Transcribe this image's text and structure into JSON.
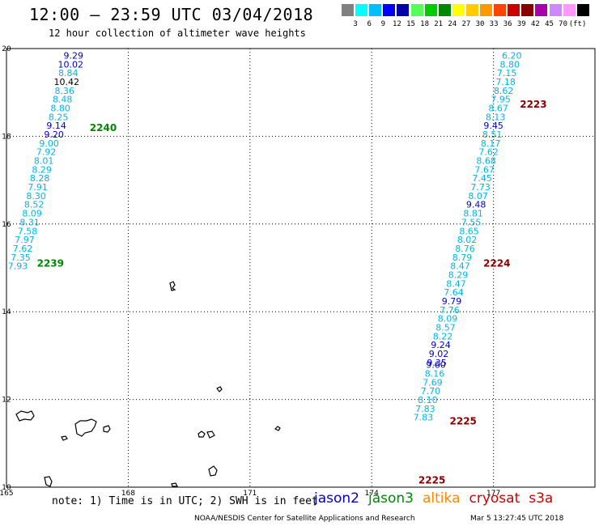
{
  "title": "12:00 – 23:59 UTC 03/04/2018",
  "subtitle": "12 hour collection of altimeter wave heights",
  "color_scale": {
    "colors": [
      "#808080",
      "#00ffff",
      "#00bfff",
      "#0000ff",
      "#0000aa",
      "#55ff55",
      "#00cc00",
      "#008800",
      "#ffff00",
      "#ffcc00",
      "#ff9900",
      "#ff4400",
      "#cc0000",
      "#880000",
      "#aa00aa",
      "#cc88ff",
      "#ff99ff",
      "#000000"
    ],
    "labels": [
      "3",
      "6",
      "9",
      "12",
      "15",
      "18",
      "21",
      "24",
      "27",
      "30",
      "33",
      "36",
      "39",
      "42",
      "45",
      "70",
      "(ft)"
    ]
  },
  "axes": {
    "x_ticks": [
      "165",
      "168",
      "171",
      "174",
      "177"
    ],
    "y_ticks": [
      "20",
      "18",
      "16",
      "14",
      "12",
      "10"
    ],
    "x_range": [
      165,
      179.5
    ],
    "y_range": [
      10,
      20
    ]
  },
  "palette": {
    "cyan": "#00b4e6",
    "blue": "#0000cc",
    "black": "#000000",
    "jason3": "#008800",
    "cryosat": "#880000"
  },
  "passes": [
    {
      "label": "2240",
      "color": "jason3",
      "lon": 167.05,
      "lat": 18.12
    },
    {
      "label": "2239",
      "color": "jason3",
      "lon": 165.75,
      "lat": 15.03
    },
    {
      "label": "2223",
      "color": "cryosat",
      "lon": 177.65,
      "lat": 18.65
    },
    {
      "label": "2224",
      "color": "cryosat",
      "lon": 176.75,
      "lat": 15.03
    },
    {
      "label": "2225",
      "color": "cryosat",
      "lon": 175.92,
      "lat": 11.43
    },
    {
      "label": "2225",
      "color": "cryosat",
      "lon": 175.15,
      "lat": 10.08
    }
  ],
  "tracks": [
    [
      {
        "v": "9.29",
        "c": "blue",
        "lon": 166.65,
        "lat": 19.77
      },
      {
        "v": "10.02",
        "c": "blue",
        "lon": 166.58,
        "lat": 19.57
      },
      {
        "v": "8.84",
        "c": "cyan",
        "lon": 166.52,
        "lat": 19.37
      },
      {
        "v": "10.42",
        "c": "black",
        "lon": 166.48,
        "lat": 19.17
      },
      {
        "v": "8.36",
        "c": "cyan",
        "lon": 166.43,
        "lat": 18.97
      },
      {
        "v": "8.48",
        "c": "cyan",
        "lon": 166.38,
        "lat": 18.77
      },
      {
        "v": "8.80",
        "c": "cyan",
        "lon": 166.33,
        "lat": 18.57
      },
      {
        "v": "8.25",
        "c": "cyan",
        "lon": 166.28,
        "lat": 18.37
      },
      {
        "v": "9.14",
        "c": "blue",
        "lon": 166.23,
        "lat": 18.17
      },
      {
        "v": "9.20",
        "c": "blue",
        "lon": 166.17,
        "lat": 17.97
      },
      {
        "v": "9.00",
        "c": "cyan",
        "lon": 166.05,
        "lat": 17.77
      },
      {
        "v": "7.92",
        "c": "cyan",
        "lon": 165.98,
        "lat": 17.57
      },
      {
        "v": "8.01",
        "c": "cyan",
        "lon": 165.92,
        "lat": 17.37
      },
      {
        "v": "8.29",
        "c": "cyan",
        "lon": 165.87,
        "lat": 17.17
      },
      {
        "v": "8.28",
        "c": "cyan",
        "lon": 165.82,
        "lat": 16.97
      },
      {
        "v": "7.91",
        "c": "cyan",
        "lon": 165.77,
        "lat": 16.77
      },
      {
        "v": "8.30",
        "c": "cyan",
        "lon": 165.73,
        "lat": 16.57
      },
      {
        "v": "8.52",
        "c": "cyan",
        "lon": 165.68,
        "lat": 16.37
      },
      {
        "v": "8.09",
        "c": "cyan",
        "lon": 165.63,
        "lat": 16.17
      },
      {
        "v": "8.31",
        "c": "cyan",
        "lon": 165.57,
        "lat": 15.97
      },
      {
        "v": "7.58",
        "c": "cyan",
        "lon": 165.52,
        "lat": 15.77
      },
      {
        "v": "7.97",
        "c": "cyan",
        "lon": 165.45,
        "lat": 15.57
      },
      {
        "v": "7.62",
        "c": "cyan",
        "lon": 165.4,
        "lat": 15.37
      },
      {
        "v": "7.35",
        "c": "cyan",
        "lon": 165.35,
        "lat": 15.17
      },
      {
        "v": "7.93",
        "c": "cyan",
        "lon": 165.28,
        "lat": 14.97
      }
    ],
    [
      {
        "v": "6.20",
        "c": "cyan",
        "lon": 177.45,
        "lat": 19.77
      },
      {
        "v": "8.80",
        "c": "cyan",
        "lon": 177.4,
        "lat": 19.57
      },
      {
        "v": "7.15",
        "c": "cyan",
        "lon": 177.33,
        "lat": 19.37
      },
      {
        "v": "7.18",
        "c": "cyan",
        "lon": 177.3,
        "lat": 19.17
      },
      {
        "v": "8.62",
        "c": "cyan",
        "lon": 177.25,
        "lat": 18.97
      },
      {
        "v": "7.95",
        "c": "cyan",
        "lon": 177.18,
        "lat": 18.77
      },
      {
        "v": "8.67",
        "c": "cyan",
        "lon": 177.12,
        "lat": 18.57
      },
      {
        "v": "8.13",
        "c": "cyan",
        "lon": 177.05,
        "lat": 18.37
      },
      {
        "v": "9.45",
        "c": "blue",
        "lon": 177.0,
        "lat": 18.17
      },
      {
        "v": "8.51",
        "c": "cyan",
        "lon": 176.97,
        "lat": 17.97
      },
      {
        "v": "8.17",
        "c": "cyan",
        "lon": 176.93,
        "lat": 17.77
      },
      {
        "v": "7.62",
        "c": "cyan",
        "lon": 176.88,
        "lat": 17.57
      },
      {
        "v": "8.68",
        "c": "cyan",
        "lon": 176.82,
        "lat": 17.37
      },
      {
        "v": "7.67",
        "c": "cyan",
        "lon": 176.78,
        "lat": 17.17
      },
      {
        "v": "7.45",
        "c": "cyan",
        "lon": 176.72,
        "lat": 16.97
      },
      {
        "v": "7.73",
        "c": "cyan",
        "lon": 176.68,
        "lat": 16.77
      },
      {
        "v": "8.07",
        "c": "cyan",
        "lon": 176.62,
        "lat": 16.57
      },
      {
        "v": "9.48",
        "c": "blue",
        "lon": 176.57,
        "lat": 16.37
      },
      {
        "v": "8.81",
        "c": "cyan",
        "lon": 176.5,
        "lat": 16.17
      },
      {
        "v": "7.55",
        "c": "cyan",
        "lon": 176.45,
        "lat": 15.97
      },
      {
        "v": "8.65",
        "c": "cyan",
        "lon": 176.4,
        "lat": 15.77
      },
      {
        "v": "8.02",
        "c": "cyan",
        "lon": 176.35,
        "lat": 15.57
      },
      {
        "v": "8.76",
        "c": "cyan",
        "lon": 176.3,
        "lat": 15.37
      },
      {
        "v": "8.79",
        "c": "cyan",
        "lon": 176.23,
        "lat": 15.17
      },
      {
        "v": "8.47",
        "c": "cyan",
        "lon": 176.18,
        "lat": 14.97
      },
      {
        "v": "8.29",
        "c": "cyan",
        "lon": 176.13,
        "lat": 14.77
      },
      {
        "v": "8.47",
        "c": "cyan",
        "lon": 176.08,
        "lat": 14.57
      },
      {
        "v": "7.64",
        "c": "cyan",
        "lon": 176.02,
        "lat": 14.37
      },
      {
        "v": "9.79",
        "c": "blue",
        "lon": 175.97,
        "lat": 14.17
      },
      {
        "v": "7.76",
        "c": "cyan",
        "lon": 175.92,
        "lat": 13.97
      },
      {
        "v": "8.09",
        "c": "cyan",
        "lon": 175.87,
        "lat": 13.77
      },
      {
        "v": "8.57",
        "c": "cyan",
        "lon": 175.82,
        "lat": 13.57
      },
      {
        "v": "8.22",
        "c": "cyan",
        "lon": 175.75,
        "lat": 13.37
      },
      {
        "v": "9.24",
        "c": "blue",
        "lon": 175.7,
        "lat": 13.17
      },
      {
        "v": "9.02",
        "c": "blue",
        "lon": 175.65,
        "lat": 12.97
      },
      {
        "v": "9.35",
        "c": "blue",
        "lon": 175.6,
        "lat": 12.77
      },
      {
        "v": "9.60",
        "c": "blue",
        "lon": 175.58,
        "lat": 12.72
      },
      {
        "v": "8.16",
        "c": "cyan",
        "lon": 175.55,
        "lat": 12.52
      },
      {
        "v": "7.69",
        "c": "cyan",
        "lon": 175.5,
        "lat": 12.32
      },
      {
        "v": "7.70",
        "c": "cyan",
        "lon": 175.45,
        "lat": 12.12
      },
      {
        "v": "8.10",
        "c": "cyan",
        "lon": 175.38,
        "lat": 11.92
      },
      {
        "v": "7.83",
        "c": "cyan",
        "lon": 175.32,
        "lat": 11.72
      },
      {
        "v": "7.83",
        "c": "cyan",
        "lon": 175.27,
        "lat": 11.52
      }
    ]
  ],
  "footnote": "note:  1) Time is in UTC;  2) SWH is in feet",
  "satellites": [
    {
      "name": "jason2",
      "color": "#0000cc"
    },
    {
      "name": "jason3",
      "color": "#008800"
    },
    {
      "name": "altika",
      "color": "#ff8800"
    },
    {
      "name": "cryosat",
      "color": "#cc0000"
    },
    {
      "name": "s3a",
      "color": "#cc0000"
    }
  ],
  "credit": "NOAA/NESDIS Center for Satellite Applications and Research",
  "timestamp": "Mar  5 13:27:45 UTC 2018"
}
